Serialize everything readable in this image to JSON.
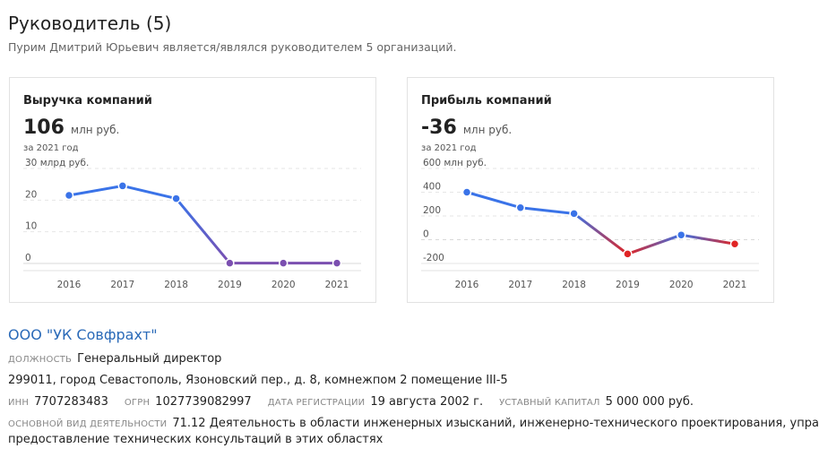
{
  "header": {
    "title": "Руководитель (5)",
    "subtitle": "Пурим Дмитрий Юрьевич является/являлся руководителем 5 организаций."
  },
  "revenue_card": {
    "title": "Выручка компаний",
    "value": "106",
    "unit": "млн руб.",
    "period": "за 2021 год"
  },
  "profit_card": {
    "title": "Прибыль компаний",
    "value": "-36",
    "unit": "млн руб.",
    "period": "за 2021 год"
  },
  "chart_data": [
    {
      "type": "line",
      "title": "Выручка компаний",
      "x": [
        "2016",
        "2017",
        "2018",
        "2019",
        "2020",
        "2021"
      ],
      "series": [
        {
          "values": [
            21.5,
            24.5,
            20.5,
            0.1,
            0.1,
            0.1
          ]
        }
      ],
      "yticks": [
        "0",
        "10",
        "20",
        "30 млрд руб."
      ],
      "ytick_values": [
        0,
        10,
        20,
        30
      ],
      "ylim": [
        0,
        30
      ],
      "grid": true,
      "colors": {
        "positive": "#3a73e8",
        "low": "#7b4fb0"
      }
    },
    {
      "type": "line",
      "title": "Прибыль компаний",
      "x": [
        "2016",
        "2017",
        "2018",
        "2019",
        "2020",
        "2021"
      ],
      "series": [
        {
          "values": [
            400,
            270,
            220,
            -120,
            40,
            -36
          ]
        }
      ],
      "yticks": [
        "-200",
        "0",
        "200",
        "400",
        "600 млн руб."
      ],
      "ytick_values": [
        -200,
        0,
        200,
        400,
        600
      ],
      "ylim": [
        -200,
        600
      ],
      "grid": true,
      "colors": {
        "positive": "#3a73e8",
        "negative": "#e02424"
      }
    }
  ],
  "organization": {
    "name": "ООО \"УК Совфрахт\"",
    "position_label": "ДОЛЖНОСТЬ",
    "position": "Генеральный директор",
    "address": "299011, город Севастополь, Язоновский пер., д. 8, комнежпом 2 помещение III-5",
    "inn_label": "ИНН",
    "inn": "7707283483",
    "ogrn_label": "ОГРН",
    "ogrn": "1027739082997",
    "reg_date_label": "ДАТА РЕГИСТРАЦИИ",
    "reg_date": "19 августа 2002 г.",
    "capital_label": "УСТАВНЫЙ КАПИТАЛ",
    "capital": "5 000 000 руб.",
    "activity_label": "ОСНОВНОЙ ВИД ДЕЯТЕЛЬНОСТИ",
    "activity_line1": "71.12 Деятельность в области инженерных изысканий, инженерно-технического проектирования, упра",
    "activity_line2": "предоставление технических консультаций в этих областях"
  }
}
